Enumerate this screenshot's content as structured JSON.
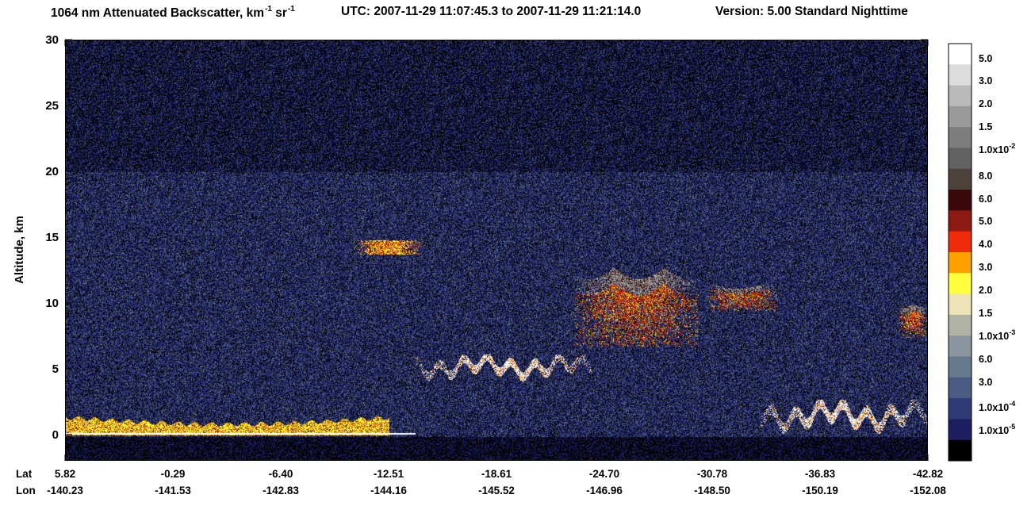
{
  "title": {
    "main": "1064 nm Attenuated Backscatter, km",
    "exp1": "-1",
    "mid": " sr",
    "exp2": "-1",
    "utc": "UTC:  2007-11-29 11:07:45.3  to  2007-11-29 11:21:14.0",
    "version": "Version: 5.00  Standard  Nighttime"
  },
  "chart_data": {
    "type": "heatmap",
    "title": "1064 nm Attenuated Backscatter, km-1 sr-1",
    "ylabel": "Altitude, km",
    "ylim": [
      -2,
      30
    ],
    "y_ticks": [
      0,
      5,
      10,
      15,
      20,
      25,
      30
    ],
    "x_row_labels": [
      "Lat",
      "Lon"
    ],
    "x_ticks": [
      {
        "lat": "5.82",
        "lon": "-140.23"
      },
      {
        "lat": "-0.29",
        "lon": "-141.53"
      },
      {
        "lat": "-6.40",
        "lon": "-142.83"
      },
      {
        "lat": "-12.51",
        "lon": "-144.16"
      },
      {
        "lat": "-18.61",
        "lon": "-145.52"
      },
      {
        "lat": "-24.70",
        "lon": "-146.96"
      },
      {
        "lat": "-30.78",
        "lon": "-148.50"
      },
      {
        "lat": "-36.83",
        "lon": "-150.19"
      },
      {
        "lat": "-42.82",
        "lon": "-152.08"
      }
    ],
    "colorbar": {
      "colors": [
        "#ffffff",
        "#dcdcdc",
        "#b9b9b9",
        "#9a9a9a",
        "#7d7d7d",
        "#626262",
        "#4d423c",
        "#3a0808",
        "#8c1a12",
        "#ef2b0c",
        "#ff9f00",
        "#ffff3c",
        "#ede3b7",
        "#b1b3a7",
        "#8b96a1",
        "#667a8e",
        "#4b5c82",
        "#2e3b74",
        "#1e1f62",
        "#000000"
      ],
      "labels": [
        {
          "mant": "5.0",
          "exp": ""
        },
        {
          "mant": "3.0",
          "exp": ""
        },
        {
          "mant": "2.0",
          "exp": ""
        },
        {
          "mant": "1.5",
          "exp": ""
        },
        {
          "mant": "1.0x10",
          "exp": "-2"
        },
        {
          "mant": "8.0",
          "exp": ""
        },
        {
          "mant": "6.0",
          "exp": ""
        },
        {
          "mant": "5.0",
          "exp": ""
        },
        {
          "mant": "4.0",
          "exp": ""
        },
        {
          "mant": "3.0",
          "exp": ""
        },
        {
          "mant": "2.0",
          "exp": ""
        },
        {
          "mant": "1.5",
          "exp": ""
        },
        {
          "mant": "1.0x10",
          "exp": "-3"
        },
        {
          "mant": "6.0",
          "exp": ""
        },
        {
          "mant": "3.0",
          "exp": ""
        },
        {
          "mant": "1.0x10",
          "exp": "-4"
        },
        {
          "mant": "1.0x10",
          "exp": "-5"
        }
      ]
    },
    "features": [
      {
        "kind": "surface_aerosol",
        "lat_range": [
          "5.82",
          "-12.51"
        ],
        "alt_km": [
          0,
          1.5
        ],
        "intensity": "1.5e-3 to 5.0e-3"
      },
      {
        "kind": "cirrus",
        "lat_range": [
          "-10.5",
          "-14.5"
        ],
        "alt_km": [
          13.5,
          15
        ],
        "intensity": "2.0e-3 to 5.0e-3"
      },
      {
        "kind": "low_cloud",
        "lat_range": [
          "-14",
          "-24"
        ],
        "alt_km": [
          4,
          6
        ],
        "intensity": "> 1.0e-2"
      },
      {
        "kind": "high_cloud",
        "lat_range": [
          "-23",
          "-30"
        ],
        "alt_km": [
          7,
          13
        ],
        "intensity": "2.0e-3 to 1.0e-2"
      },
      {
        "kind": "high_cloud",
        "lat_range": [
          "-30.5",
          "-34.5"
        ],
        "alt_km": [
          9.5,
          11.5
        ],
        "intensity": "3.0e-3 to 1.0e-2"
      },
      {
        "kind": "high_cloud",
        "lat_range": [
          "-41.2",
          "-42.8"
        ],
        "alt_km": [
          7.5,
          10
        ],
        "intensity": "2.0e-3 to 5.0e-3"
      },
      {
        "kind": "low_cloud",
        "lat_range": [
          "-33.5",
          "-42.8"
        ],
        "alt_km": [
          0,
          2.5
        ],
        "intensity": "> 1.0e-2"
      }
    ]
  }
}
